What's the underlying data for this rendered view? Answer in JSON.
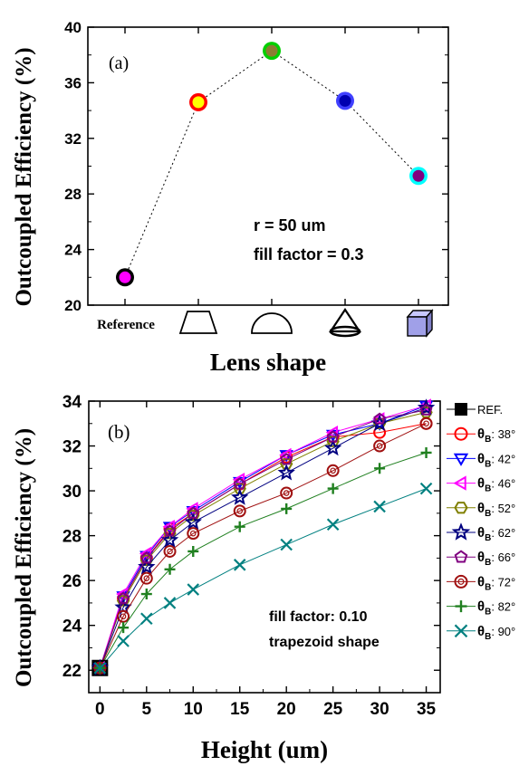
{
  "chart_data": [
    {
      "panel_label": "(a)",
      "type": "scatter",
      "xlabel": "Lens shape",
      "ylabel": "Outcoupled Efficiency (%)",
      "ylim": [
        20,
        40
      ],
      "y_ticks": [
        "20",
        "24",
        "28",
        "32",
        "36",
        "40"
      ],
      "categories": [
        "Reference",
        "trapezoid",
        "hemisphere",
        "cone",
        "cube"
      ],
      "category_icons": [
        "text",
        "trapezoid-icon",
        "hemisphere-icon",
        "cone-icon",
        "cube-icon"
      ],
      "values": [
        22.0,
        34.6,
        38.3,
        34.7,
        29.3
      ],
      "marker_fill": [
        "#ff00ff",
        "#ffff00",
        "#8b7d32",
        "#0000b0",
        "#800080"
      ],
      "marker_ring": [
        "#000000",
        "#ff0000",
        "#00d000",
        "#4040ff",
        "#00ffff"
      ],
      "annotation_lines": [
        "r = 50 um",
        "fill factor = 0.3"
      ],
      "line_style": "dotted",
      "grid": false
    },
    {
      "panel_label": "(b)",
      "type": "line",
      "xlabel": "Height (um)",
      "ylabel": "Outcoupled Efficiency (%)",
      "xlim": [
        -1.2,
        36.5
      ],
      "ylim": [
        21,
        34
      ],
      "x_ticks": [
        "0",
        "5",
        "10",
        "15",
        "20",
        "25",
        "30",
        "35"
      ],
      "y_ticks": [
        "22",
        "24",
        "26",
        "28",
        "30",
        "32",
        "34"
      ],
      "x": [
        2.5,
        5,
        7.5,
        10,
        15,
        20,
        25,
        30,
        35
      ],
      "reference": {
        "name": "REF.",
        "x": 0,
        "y": 22.1
      },
      "legend_subscript": "B",
      "legend_position": "right-outside",
      "series": [
        {
          "name": "θB: 38°",
          "angle": "38°",
          "marker": "circle",
          "color": "#ff0000",
          "values": [
            25.2,
            27.0,
            28.3,
            29.0,
            30.3,
            31.5,
            32.4,
            32.6,
            33.0
          ]
        },
        {
          "name": "θB: 42°",
          "angle": "42°",
          "marker": "triangle-down",
          "color": "#0000ff",
          "values": [
            25.3,
            27.1,
            28.4,
            29.1,
            30.4,
            31.6,
            32.5,
            33.0,
            33.8
          ]
        },
        {
          "name": "θB: 46°",
          "angle": "46°",
          "marker": "triangle-left",
          "color": "#ff00ff",
          "values": [
            25.4,
            27.2,
            28.4,
            29.2,
            30.5,
            31.6,
            32.6,
            33.2,
            33.8
          ]
        },
        {
          "name": "θB: 52°",
          "angle": "52°",
          "marker": "hexagon",
          "color": "#808000",
          "values": [
            25.1,
            26.9,
            28.1,
            28.9,
            30.1,
            31.2,
            32.2,
            33.0,
            33.5
          ]
        },
        {
          "name": "θB: 62°",
          "angle": "62°",
          "marker": "star",
          "color": "#000080",
          "values": [
            24.8,
            26.6,
            27.8,
            28.6,
            29.7,
            30.8,
            31.9,
            33.0,
            33.7
          ]
        },
        {
          "name": "θB: 66°",
          "angle": "66°",
          "marker": "pentagon",
          "color": "#800080",
          "values": [
            25.2,
            27.0,
            28.2,
            29.0,
            30.3,
            31.4,
            32.4,
            33.2,
            33.6
          ]
        },
        {
          "name": "θB: 72°",
          "angle": "72°",
          "marker": "double-circle",
          "color": "#a01010",
          "values": [
            24.4,
            26.1,
            27.3,
            28.1,
            29.1,
            29.9,
            30.9,
            32.0,
            33.0
          ]
        },
        {
          "name": "θB: 82°",
          "angle": "82°",
          "marker": "plus",
          "color": "#208020",
          "values": [
            23.9,
            25.4,
            26.5,
            27.3,
            28.4,
            29.2,
            30.1,
            31.0,
            31.7
          ]
        },
        {
          "name": "θB: 90°",
          "angle": "90°",
          "marker": "x",
          "color": "#008080",
          "values": [
            23.3,
            24.3,
            25.0,
            25.6,
            26.7,
            27.6,
            28.5,
            29.3,
            30.1
          ]
        }
      ],
      "annotation_lines": [
        "fill factor: 0.10",
        "trapezoid shape"
      ],
      "grid": false
    }
  ]
}
